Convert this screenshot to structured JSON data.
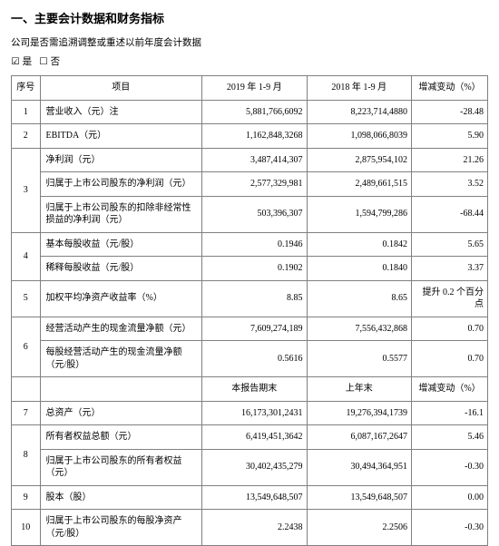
{
  "heading": "一、主要会计数据和财务指标",
  "question": "公司是否需追溯调整或重述以前年度会计数据",
  "opt_yes_mark": "☑",
  "opt_yes": "是",
  "opt_no_mark": "☐",
  "opt_no": "否",
  "headers": {
    "seq": "序号",
    "item": "项目",
    "c2019": "2019 年 1-9 月",
    "c2018": "2018 年 1-9 月",
    "delta": "增减变动（%）",
    "period_end": "本报告期末",
    "prev_year_end": "上年末",
    "delta2": "增减变动（%）"
  },
  "rows": {
    "r1": {
      "seq": "1",
      "item": "营业收入（元）注",
      "a": "5,881,766,6092",
      "b": "8,223,714,4880",
      "d": "-28.48"
    },
    "r2": {
      "seq": "2",
      "item": "EBITDA（元）",
      "a": "1,162,848,3268",
      "b": "1,098,066,8039",
      "d": "5.90"
    },
    "r3a": {
      "seq": "3",
      "item": "净利润（元）",
      "a": "3,487,414,307",
      "b": "2,875,954,102",
      "d": "21.26"
    },
    "r3b": {
      "item": "归属于上市公司股东的净利润（元）",
      "a": "2,577,329,981",
      "b": "2,489,661,515",
      "d": "3.52"
    },
    "r3c": {
      "item": "归属于上市公司股东的扣除非经常性损益的净利润（元）",
      "a": "503,396,307",
      "b": "1,594,799,286",
      "d": "-68.44"
    },
    "r4a": {
      "seq": "4",
      "item": "基本每股收益（元/股）",
      "a": "0.1946",
      "b": "0.1842",
      "d": "5.65"
    },
    "r4b": {
      "item": "稀释每股收益（元/股）",
      "a": "0.1902",
      "b": "0.1840",
      "d": "3.37"
    },
    "r5": {
      "seq": "5",
      "item": "加权平均净资产收益率（%）",
      "a": "8.85",
      "b": "8.65",
      "d": "提升 0.2 个百分点"
    },
    "r6a": {
      "seq": "6",
      "item": "经营活动产生的现金流量净额（元）",
      "a": "7,609,274,189",
      "b": "7,556,432,868",
      "d": "0.70"
    },
    "r6b": {
      "item": "每股经营活动产生的现金流量净额（元/股）",
      "a": "0.5616",
      "b": "0.5577",
      "d": "0.70"
    },
    "r7": {
      "seq": "7",
      "item": "总资产（元）",
      "a": "16,173,301,2431",
      "b": "19,276,394,1739",
      "d": "-16.1"
    },
    "r8a": {
      "seq": "8",
      "item": "所有者权益总额（元）",
      "a": "6,419,451,3642",
      "b": "6,087,167,2647",
      "d": "5.46"
    },
    "r8b": {
      "item": "归属于上市公司股东的所有者权益（元）",
      "a": "30,402,435,279",
      "b": "30,494,364,951",
      "d": "-0.30"
    },
    "r9": {
      "seq": "9",
      "item": "股本（股）",
      "a": "13,549,648,507",
      "b": "13,549,648,507",
      "d": "0.00"
    },
    "r10": {
      "seq": "10",
      "item": "归属于上市公司股东的每股净资产（元/股）",
      "a": "2.2438",
      "b": "2.2506",
      "d": "-0.30"
    }
  }
}
